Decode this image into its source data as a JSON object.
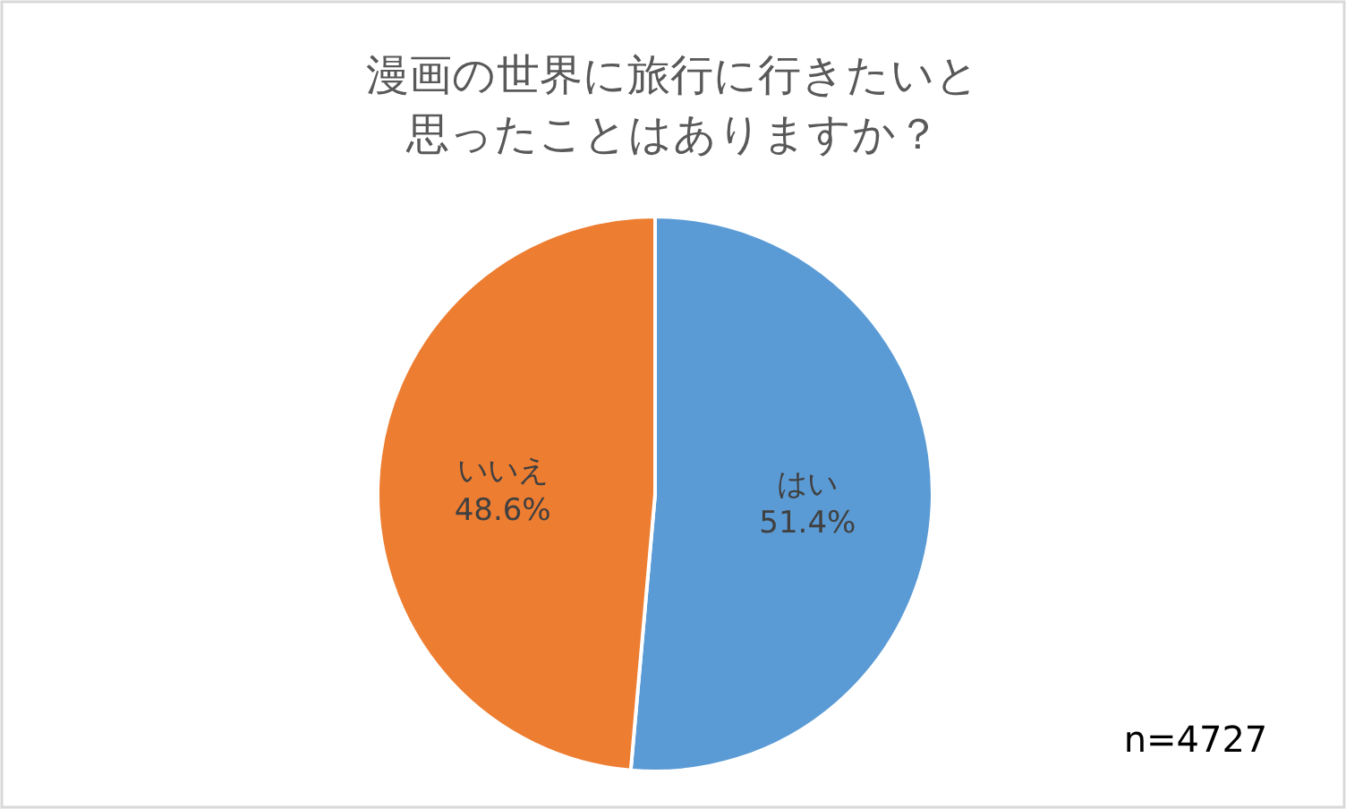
{
  "chart_data": {
    "type": "pie",
    "title": "漫画の世界に旅行に行きたいと思ったことはありますか？",
    "categories": [
      "はい",
      "いいえ"
    ],
    "values": [
      51.4,
      48.6
    ],
    "colors": [
      "#5b9bd5",
      "#ed7d31"
    ],
    "value_labels": [
      "51.4%",
      "48.6%"
    ],
    "legend": false,
    "annotations": [
      "n=4727"
    ]
  }
}
